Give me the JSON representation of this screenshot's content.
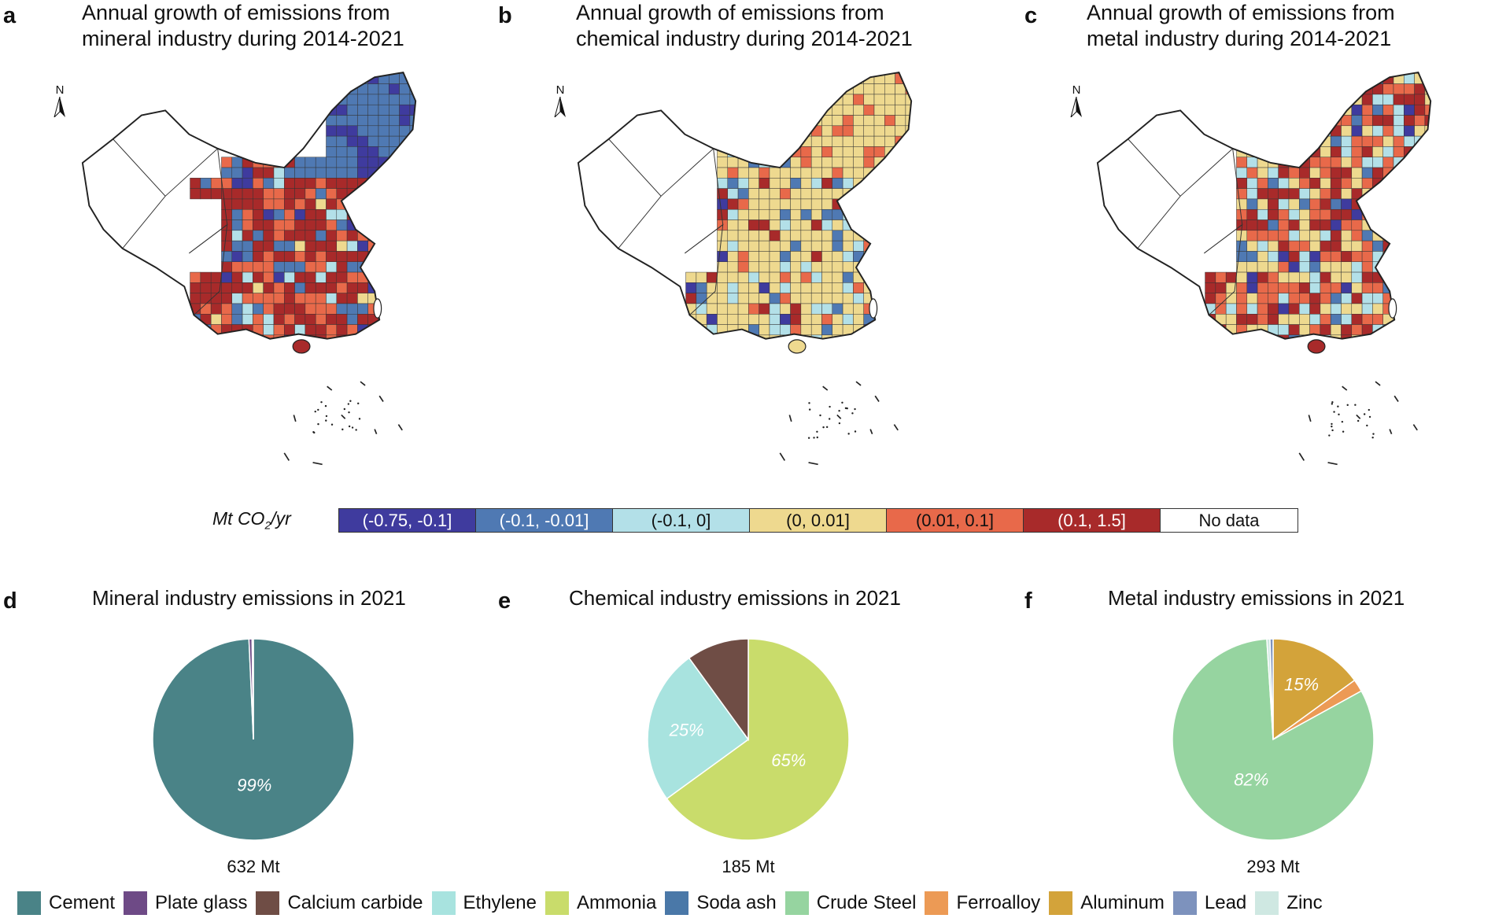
{
  "maps": [
    {
      "letter": "a",
      "title_line1": "Annual growth of emissions from",
      "title_line2": "mineral industry during 2014-2021",
      "north": "N"
    },
    {
      "letter": "b",
      "title_line1": "Annual growth of emissions from",
      "title_line2": "chemical industry during 2014-2021",
      "north": "N"
    },
    {
      "letter": "c",
      "title_line1": "Annual growth of emissions from",
      "title_line2": "metal industry during 2014-2021",
      "north": "N"
    }
  ],
  "growth_legend": {
    "unit_main": "Mt CO",
    "unit_sub": "2",
    "unit_tail": "/yr",
    "bins": [
      {
        "label": "(-0.75, -0.1]",
        "color": "#3f3b9e",
        "text_color": "#ffffff"
      },
      {
        "label": "(-0.1, -0.01]",
        "color": "#4f79b3",
        "text_color": "#ffffff"
      },
      {
        "label": "(-0.1, 0]",
        "color": "#b3e0e8",
        "text_color": "#111111"
      },
      {
        "label": "(0, 0.01]",
        "color": "#eed98f",
        "text_color": "#111111"
      },
      {
        "label": "(0.01, 0.1]",
        "color": "#e8694a",
        "text_color": "#111111"
      },
      {
        "label": "(0.1, 1.5]",
        "color": "#a82a2a",
        "text_color": "#ffffff"
      },
      {
        "label": "No data",
        "color": "#ffffff",
        "text_color": "#111111"
      }
    ]
  },
  "chart_data": [
    {
      "type": "pie",
      "letter": "d",
      "title": "Mineral industry emissions in 2021",
      "total": "632 Mt",
      "slices": [
        {
          "name": "Cement",
          "value": 99.3,
          "label": "99%"
        },
        {
          "name": "Plate glass",
          "value": 0.5,
          "label": ""
        },
        {
          "name": "Calcium carbide",
          "value": 0.2,
          "label": ""
        }
      ]
    },
    {
      "type": "pie",
      "letter": "e",
      "title": "Chemical industry emissions in 2021",
      "total": "185 Mt",
      "slices": [
        {
          "name": "Ammonia",
          "value": 65,
          "label": "65%"
        },
        {
          "name": "Ethylene",
          "value": 25,
          "label": "25%"
        },
        {
          "name": "Calcium carbide",
          "value": 10,
          "label": ""
        }
      ]
    },
    {
      "type": "pie",
      "letter": "f",
      "title": "Metal industry emissions in 2021",
      "total": "293 Mt",
      "slices": [
        {
          "name": "Aluminum",
          "value": 15,
          "label": "15%"
        },
        {
          "name": "Ferroalloy",
          "value": 2,
          "label": ""
        },
        {
          "name": "Crude Steel",
          "value": 82,
          "label": "82%"
        },
        {
          "name": "Zinc",
          "value": 0.5,
          "label": ""
        },
        {
          "name": "Lead",
          "value": 0.5,
          "label": ""
        }
      ]
    }
  ],
  "category_legend": [
    {
      "name": "Cement",
      "color": "#4a8387"
    },
    {
      "name": "Plate glass",
      "color": "#6e4a86"
    },
    {
      "name": "Calcium carbide",
      "color": "#6f4d45"
    },
    {
      "name": "Ethylene",
      "color": "#a8e3df"
    },
    {
      "name": "Ammonia",
      "color": "#c9dc6b"
    },
    {
      "name": "Soda ash",
      "color": "#4a78a8"
    },
    {
      "name": "Crude Steel",
      "color": "#96d4a0"
    },
    {
      "name": "Ferroalloy",
      "color": "#ec9a55"
    },
    {
      "name": "Aluminum",
      "color": "#d3a33a"
    },
    {
      "name": "Lead",
      "color": "#7d92bd"
    },
    {
      "name": "Zinc",
      "color": "#cfe8e2"
    }
  ]
}
